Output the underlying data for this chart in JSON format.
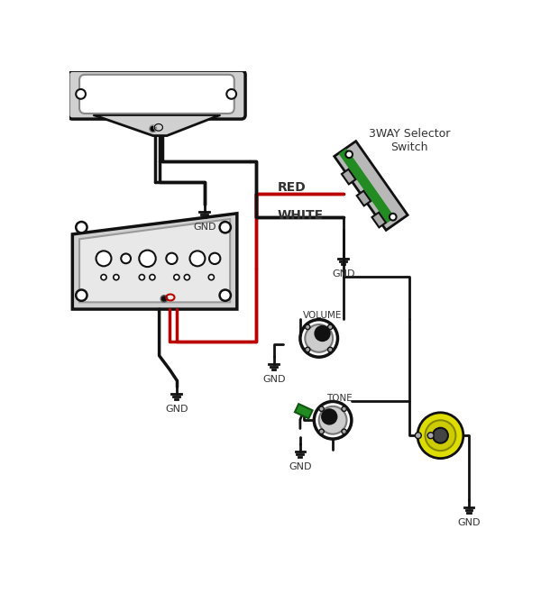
{
  "bg_color": "#ffffff",
  "wire_black": "#111111",
  "wire_red": "#bb0000",
  "component_fill": "#d0d0d0",
  "component_fill_light": "#e8e8e8",
  "component_stroke": "#111111",
  "green_color": "#228B22",
  "yellow_color": "#dddd00",
  "yellow_inner": "#cccc00",
  "switch_label": "3WAY Selector\nSwitch",
  "volume_label": "VOLUME",
  "tone_label": "TONE",
  "gnd_label": "GND",
  "red_label": "RED",
  "white_label": "WHITE",
  "label_dark": "#333333",
  "wire_lw": 2.0,
  "wire_lw_thick": 2.5
}
